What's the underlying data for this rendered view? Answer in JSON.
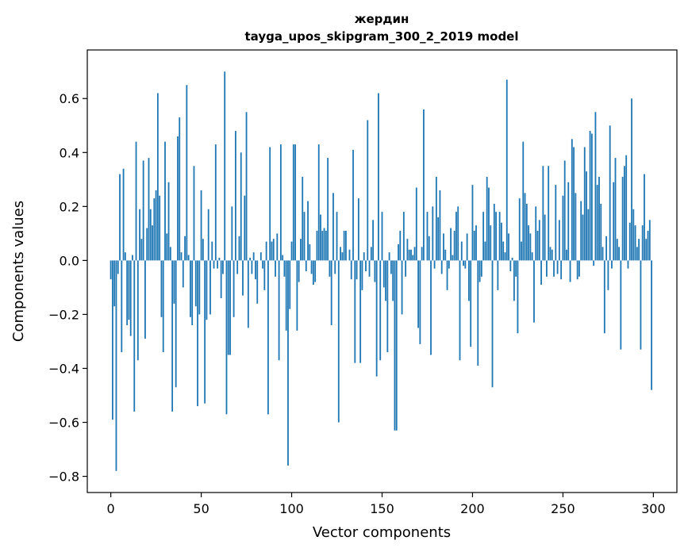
{
  "chart_data": {
    "type": "bar",
    "title": "жердин",
    "subtitle": "tayga_upos_skipgram_300_2_2019 model",
    "xlabel": "Vector components",
    "ylabel": "Components values",
    "xlim": [
      -13,
      313
    ],
    "ylim": [
      -0.86,
      0.78
    ],
    "xticks": [
      0,
      50,
      100,
      150,
      200,
      250,
      300
    ],
    "yticks": [
      -0.8,
      -0.6,
      -0.4,
      -0.2,
      0.0,
      0.2,
      0.4,
      0.6
    ],
    "ytick_labels": [
      "−0.8",
      "−0.6",
      "−0.4",
      "−0.2",
      "0.0",
      "0.2",
      "0.4",
      "0.6"
    ],
    "bar_color": "#1f77b4",
    "grid": false,
    "legend": "none",
    "series": [
      {
        "x_start": 0,
        "values": [
          -0.07,
          -0.59,
          -0.17,
          -0.78,
          -0.05,
          0.32,
          -0.34,
          0.34,
          0.03,
          -0.24,
          -0.22,
          -0.28,
          0.02,
          -0.56,
          0.44,
          -0.37,
          0.19,
          0.08,
          0.37,
          -0.29,
          0.12,
          0.38,
          0.19,
          0.13,
          0.23,
          0.26,
          0.62,
          0.24,
          -0.21,
          -0.34,
          0.44,
          0.1,
          0.29,
          0.05,
          -0.56,
          -0.16,
          -0.47,
          0.46,
          0.53,
          0.03,
          -0.1,
          0.09,
          0.65,
          0.02,
          -0.21,
          -0.24,
          0.35,
          -0.17,
          -0.54,
          -0.2,
          0.26,
          0.08,
          -0.53,
          -0.22,
          0.19,
          -0.2,
          0.07,
          -0.03,
          0.43,
          -0.03,
          0.01,
          -0.14,
          -0.05,
          0.7,
          -0.57,
          -0.35,
          -0.35,
          0.2,
          -0.21,
          0.48,
          -0.05,
          0.09,
          0.4,
          -0.13,
          0.24,
          0.55,
          -0.25,
          0.01,
          -0.05,
          0.03,
          -0.07,
          -0.16,
          0.0,
          0.03,
          -0.03,
          -0.11,
          0.07,
          -0.57,
          0.42,
          0.07,
          0.08,
          -0.06,
          0.1,
          -0.37,
          0.43,
          0.02,
          -0.06,
          -0.26,
          -0.76,
          -0.18,
          0.07,
          0.43,
          0.43,
          -0.26,
          -0.08,
          0.08,
          0.31,
          0.18,
          -0.04,
          0.22,
          0.06,
          -0.05,
          -0.09,
          -0.08,
          0.11,
          0.43,
          0.17,
          0.11,
          0.12,
          0.11,
          0.38,
          -0.06,
          -0.24,
          0.25,
          -0.05,
          0.18,
          -0.6,
          0.05,
          0.03,
          0.11,
          0.11,
          0.0,
          0.04,
          -0.07,
          0.41,
          -0.38,
          -0.07,
          0.23,
          -0.38,
          -0.11,
          0.03,
          -0.04,
          0.52,
          -0.06,
          0.05,
          0.15,
          -0.08,
          -0.43,
          0.62,
          -0.37,
          0.18,
          -0.1,
          -0.15,
          -0.34,
          0.03,
          -0.05,
          -0.15,
          -0.63,
          -0.63,
          0.06,
          0.11,
          -0.2,
          0.18,
          -0.06,
          0.08,
          0.04,
          0.04,
          0.02,
          0.05,
          0.27,
          -0.25,
          -0.31,
          0.05,
          0.56,
          0.0,
          0.18,
          0.09,
          -0.35,
          0.2,
          -0.03,
          0.31,
          0.16,
          0.26,
          -0.05,
          0.1,
          0.04,
          -0.11,
          -0.03,
          0.12,
          0.02,
          0.11,
          0.18,
          0.2,
          -0.37,
          0.07,
          -0.02,
          -0.03,
          0.1,
          -0.15,
          -0.32,
          0.28,
          0.11,
          0.13,
          -0.39,
          -0.08,
          -0.06,
          0.18,
          0.07,
          0.31,
          0.27,
          0.13,
          -0.47,
          0.21,
          0.18,
          -0.11,
          0.18,
          0.14,
          0.07,
          0.03,
          0.67,
          0.1,
          -0.04,
          0.01,
          -0.15,
          -0.06,
          -0.27,
          0.23,
          0.07,
          0.44,
          0.25,
          0.21,
          0.13,
          0.1,
          0.03,
          -0.23,
          0.2,
          0.11,
          0.15,
          -0.09,
          0.35,
          0.17,
          -0.06,
          0.35,
          0.05,
          0.04,
          -0.06,
          0.28,
          -0.05,
          0.15,
          -0.07,
          0.24,
          0.37,
          0.04,
          0.29,
          -0.08,
          0.45,
          0.42,
          0.25,
          -0.07,
          -0.06,
          0.22,
          0.17,
          0.42,
          0.33,
          0.19,
          0.48,
          0.47,
          -0.02,
          0.55,
          0.28,
          0.31,
          0.21,
          0.05,
          -0.27,
          0.09,
          -0.11,
          0.5,
          -0.03,
          0.29,
          0.38,
          0.08,
          0.05,
          -0.33,
          0.31,
          0.35,
          0.39,
          -0.03,
          0.14,
          0.6,
          0.19,
          0.13,
          0.05,
          0.08,
          -0.33,
          0.13,
          0.32,
          0.08,
          0.11,
          0.15,
          -0.48
        ]
      }
    ]
  }
}
